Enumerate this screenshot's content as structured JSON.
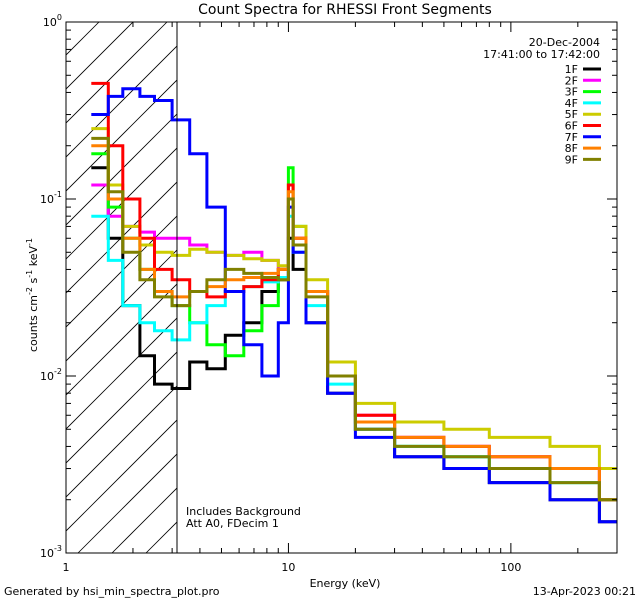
{
  "chart_data": {
    "type": "line",
    "title": "Count Spectra for RHESSI Front Segments",
    "xlabel": "Energy (keV)",
    "ylabel": "counts cm",
    "ylabel_sup1": "-2",
    "ylabel_mid": " s",
    "ylabel_sup2": "-1",
    "ylabel_end": " keV",
    "ylabel_sup3": "-1",
    "xscale": "log",
    "yscale": "log",
    "xlim": [
      1,
      300
    ],
    "ylim": [
      0.001,
      1
    ],
    "x_ticks": [
      {
        "value": 1,
        "label": "1"
      },
      {
        "value": 10,
        "label": "10"
      },
      {
        "value": 100,
        "label": "100"
      }
    ],
    "y_ticks": [
      {
        "value": 1,
        "base": "10",
        "exp": "0"
      },
      {
        "value": 0.1,
        "base": "10",
        "exp": "-1"
      },
      {
        "value": 0.01,
        "base": "10",
        "exp": "-2"
      },
      {
        "value": 0.001,
        "base": "10",
        "exp": "-3"
      }
    ],
    "shaded_region": {
      "x_range": [
        1,
        3
      ],
      "pattern": "diagonal-hatch"
    },
    "legend_position": "top-right",
    "date": "20-Dec-2004",
    "time_range": "17:41:00 to 17:42:00",
    "annotation_lines": [
      "Includes Background",
      "Att A0, FDecim 1"
    ],
    "series": [
      {
        "name": "1F",
        "color": "#000000",
        "x": [
          1.3,
          1.55,
          1.8,
          2.15,
          2.5,
          3.0,
          3.6,
          4.3,
          5.2,
          6.3,
          7.6,
          9.0,
          10.0,
          10.5,
          12,
          15,
          20,
          30,
          50,
          80,
          150,
          250
        ],
        "values": [
          0.15,
          0.06,
          0.025,
          0.013,
          0.009,
          0.0085,
          0.012,
          0.011,
          0.017,
          0.02,
          0.03,
          0.035,
          0.06,
          0.04,
          0.02,
          0.008,
          0.005,
          0.0035,
          0.003,
          0.0025,
          0.002,
          0.0015
        ]
      },
      {
        "name": "2F",
        "color": "#ff00ff",
        "x": [
          1.3,
          1.55,
          1.8,
          2.15,
          2.5,
          3.0,
          3.6,
          4.3,
          5.2,
          6.3,
          7.6,
          9.0,
          10.0,
          10.5,
          12,
          15,
          20,
          30,
          50,
          80,
          150,
          250
        ],
        "values": [
          0.12,
          0.08,
          0.07,
          0.065,
          0.06,
          0.06,
          0.055,
          0.05,
          0.048,
          0.05,
          0.045,
          0.04,
          0.1,
          0.06,
          0.03,
          0.01,
          0.006,
          0.0045,
          0.004,
          0.0035,
          0.003,
          0.002
        ]
      },
      {
        "name": "3F",
        "color": "#00ff00",
        "x": [
          1.3,
          1.55,
          1.8,
          2.15,
          2.5,
          3.0,
          3.6,
          4.3,
          5.2,
          6.3,
          7.6,
          9.0,
          10.0,
          10.5,
          12,
          15,
          20,
          30,
          50,
          80,
          150,
          250
        ],
        "values": [
          0.18,
          0.09,
          0.06,
          0.04,
          0.03,
          0.025,
          0.02,
          0.015,
          0.013,
          0.018,
          0.025,
          0.04,
          0.15,
          0.07,
          0.03,
          0.01,
          0.0055,
          0.004,
          0.0035,
          0.003,
          0.0025,
          0.002
        ]
      },
      {
        "name": "4F",
        "color": "#00ffff",
        "x": [
          1.3,
          1.55,
          1.8,
          2.15,
          2.5,
          3.0,
          3.6,
          4.3,
          5.2,
          6.3,
          7.6,
          9.0,
          10.0,
          10.5,
          12,
          15,
          20,
          30,
          50,
          80,
          150,
          250
        ],
        "values": [
          0.08,
          0.045,
          0.025,
          0.02,
          0.018,
          0.016,
          0.02,
          0.025,
          0.03,
          0.032,
          0.034,
          0.036,
          0.08,
          0.05,
          0.025,
          0.009,
          0.005,
          0.004,
          0.0035,
          0.003,
          0.0025,
          0.002
        ]
      },
      {
        "name": "5F",
        "color": "#cccc00",
        "x": [
          1.3,
          1.55,
          1.8,
          2.15,
          2.5,
          3.0,
          3.6,
          4.3,
          5.2,
          6.3,
          7.6,
          9.0,
          10.0,
          10.5,
          12,
          15,
          20,
          30,
          50,
          80,
          150,
          250
        ],
        "values": [
          0.25,
          0.12,
          0.07,
          0.055,
          0.05,
          0.048,
          0.052,
          0.05,
          0.048,
          0.046,
          0.045,
          0.042,
          0.12,
          0.07,
          0.035,
          0.012,
          0.007,
          0.0055,
          0.005,
          0.0045,
          0.004,
          0.003
        ]
      },
      {
        "name": "6F",
        "color": "#ff0000",
        "x": [
          1.3,
          1.55,
          1.8,
          2.15,
          2.5,
          3.0,
          3.6,
          4.3,
          5.2,
          6.3,
          7.6,
          9.0,
          10.0,
          10.5,
          12,
          15,
          20,
          30,
          50,
          80,
          150,
          250
        ],
        "values": [
          0.45,
          0.2,
          0.1,
          0.06,
          0.04,
          0.035,
          0.03,
          0.028,
          0.03,
          0.032,
          0.035,
          0.04,
          0.12,
          0.06,
          0.03,
          0.01,
          0.006,
          0.0045,
          0.004,
          0.0035,
          0.003,
          0.002
        ]
      },
      {
        "name": "7F",
        "color": "#0000ff",
        "x": [
          1.3,
          1.55,
          1.8,
          2.15,
          2.5,
          3.0,
          3.6,
          4.3,
          5.2,
          6.3,
          7.6,
          9.0,
          10.0,
          10.5,
          12,
          15,
          20,
          30,
          50,
          80,
          150,
          250
        ],
        "values": [
          0.3,
          0.38,
          0.42,
          0.38,
          0.36,
          0.28,
          0.18,
          0.09,
          0.03,
          0.015,
          0.01,
          0.02,
          0.09,
          0.05,
          0.02,
          0.008,
          0.0045,
          0.0035,
          0.003,
          0.0025,
          0.002,
          0.0015
        ]
      },
      {
        "name": "8F",
        "color": "#ff8000",
        "x": [
          1.3,
          1.55,
          1.8,
          2.15,
          2.5,
          3.0,
          3.6,
          4.3,
          5.2,
          6.3,
          7.6,
          9.0,
          10.0,
          10.5,
          12,
          15,
          20,
          30,
          50,
          80,
          150,
          250
        ],
        "values": [
          0.2,
          0.1,
          0.06,
          0.04,
          0.03,
          0.028,
          0.03,
          0.032,
          0.035,
          0.036,
          0.038,
          0.04,
          0.11,
          0.06,
          0.03,
          0.01,
          0.0055,
          0.0045,
          0.004,
          0.0035,
          0.003,
          0.002
        ]
      },
      {
        "name": "9F",
        "color": "#808000",
        "x": [
          1.3,
          1.55,
          1.8,
          2.15,
          2.5,
          3.0,
          3.6,
          4.3,
          5.2,
          6.3,
          7.6,
          9.0,
          10.0,
          10.5,
          12,
          15,
          20,
          30,
          50,
          80,
          150,
          250
        ],
        "values": [
          0.22,
          0.11,
          0.05,
          0.035,
          0.028,
          0.025,
          0.03,
          0.035,
          0.04,
          0.038,
          0.036,
          0.035,
          0.1,
          0.055,
          0.028,
          0.01,
          0.005,
          0.004,
          0.0035,
          0.003,
          0.0025,
          0.002
        ]
      }
    ]
  },
  "footer": {
    "generated": "Generated by hsi_min_spectra_plot.pro",
    "timestamp": "13-Apr-2023 00:21"
  }
}
